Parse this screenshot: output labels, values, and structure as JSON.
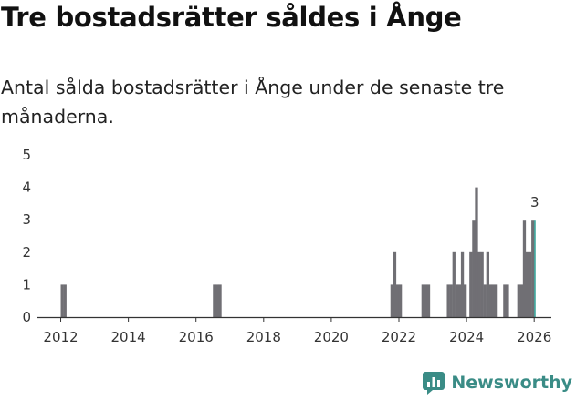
{
  "title": "Tre bostadsrätter såldes i Ånge",
  "subtitle": "Antal sålda bostadsrätter i Ånge under de senaste tre månaderna.",
  "brand": "Newsworthy",
  "colors": {
    "bar": "#706f74",
    "highlight": "#3aa59c",
    "brand": "#3a8c86",
    "axis": "#333333"
  },
  "chart_data": {
    "type": "bar",
    "title": "Tre bostadsrätter såldes i Ånge",
    "xlabel": "",
    "ylabel": "",
    "ylim": [
      0,
      5
    ],
    "yticks": [
      0,
      1,
      2,
      3,
      4,
      5
    ],
    "xlim": [
      2011.5,
      2026.4
    ],
    "xticks": [
      2012,
      2014,
      2016,
      2018,
      2020,
      2022,
      2024,
      2026
    ],
    "xtick_labels": [
      "2012",
      "2014",
      "2016",
      "2018",
      "2020",
      "2022",
      "2024",
      "2026"
    ],
    "grid": false,
    "series": [
      {
        "name": "Antal sålda bostadsrätter",
        "x": [
          "2012-01",
          "2012-02",
          "2016-07",
          "2016-08",
          "2016-09",
          "2021-10",
          "2021-11",
          "2021-12",
          "2022-01",
          "2022-09",
          "2022-10",
          "2022-11",
          "2023-06",
          "2023-07",
          "2023-08",
          "2023-09",
          "2023-10",
          "2023-11",
          "2023-12",
          "2024-02",
          "2024-03",
          "2024-04",
          "2024-05",
          "2024-06",
          "2024-07",
          "2024-08",
          "2024-09",
          "2024-10",
          "2024-11",
          "2025-02",
          "2025-03",
          "2025-07",
          "2025-08",
          "2025-09",
          "2025-10",
          "2025-11",
          "2025-12",
          "2026-01"
        ],
        "values": [
          1,
          1,
          1,
          1,
          1,
          1,
          2,
          1,
          1,
          1,
          1,
          1,
          1,
          1,
          2,
          1,
          1,
          2,
          1,
          2,
          3,
          4,
          2,
          2,
          1,
          2,
          1,
          1,
          1,
          1,
          1,
          1,
          1,
          3,
          2,
          2,
          3,
          3
        ]
      }
    ],
    "highlight": {
      "x": "2026-01",
      "value": 3,
      "label": "3"
    }
  }
}
